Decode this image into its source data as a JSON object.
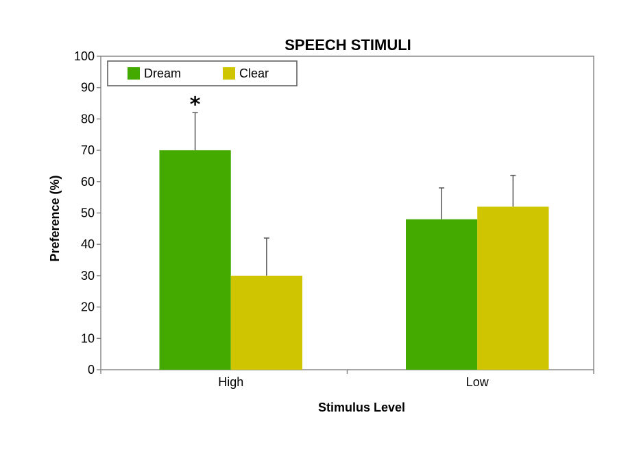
{
  "chart_data": {
    "type": "bar",
    "title": "SPEECH STIMULI",
    "xlabel": "Stimulus Level",
    "ylabel": "Preference (%)",
    "ylim": [
      0,
      100
    ],
    "yticks": [
      0,
      10,
      20,
      30,
      40,
      50,
      60,
      70,
      80,
      90,
      100
    ],
    "categories": [
      "High",
      "Low"
    ],
    "series": [
      {
        "name": "Dream",
        "color": "#44aa00",
        "values": [
          70,
          48
        ],
        "errors": [
          12,
          10
        ]
      },
      {
        "name": "Clear",
        "color": "#cfc500",
        "values": [
          30,
          52
        ],
        "errors": [
          12,
          10
        ]
      }
    ],
    "annotations": [
      {
        "text": "*",
        "category": "High",
        "series": "Dream"
      }
    ],
    "legend_position": "top-left",
    "grid": false
  }
}
